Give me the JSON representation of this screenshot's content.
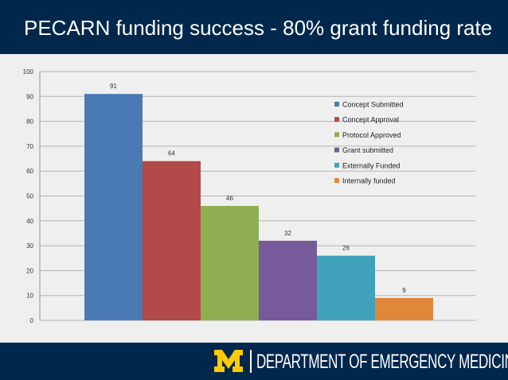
{
  "header": {
    "title": "PECARN funding success - 80% grant funding rate"
  },
  "footer": {
    "department": "DEPARTMENT OF EMERGENCY MEDICINE",
    "logo_icon": "university-block-m-logo"
  },
  "colors": {
    "header_bg": "#00274c",
    "footer_bg": "#00274c",
    "logo": "#ffcb05",
    "chart_bg": "#efefef"
  },
  "chart_data": {
    "type": "bar",
    "title": "",
    "xlabel": "",
    "ylabel": "",
    "ylim": [
      0,
      100
    ],
    "yticks": [
      0,
      10,
      20,
      30,
      40,
      50,
      60,
      70,
      80,
      90,
      100
    ],
    "grid": true,
    "legend_position": "right",
    "series": [
      {
        "name": "Concept Submitted",
        "value": 91,
        "color": "#4a7ab4"
      },
      {
        "name": "Concept Approval",
        "value": 64,
        "color": "#b14a48"
      },
      {
        "name": "Protocol Approved",
        "value": 46,
        "color": "#8faf52"
      },
      {
        "name": "Grant submitted",
        "value": 32,
        "color": "#765a9a"
      },
      {
        "name": "Externally Funded",
        "value": 26,
        "color": "#41a2bb"
      },
      {
        "name": "Internally funded",
        "value": 9,
        "color": "#e0873a"
      }
    ]
  }
}
